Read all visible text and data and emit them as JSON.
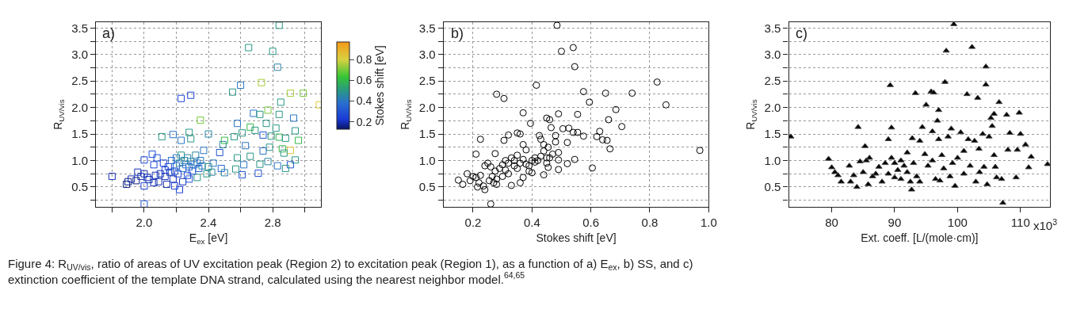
{
  "chart_data": [
    {
      "type": "scatter",
      "xlabel": "E$_{ex}$ [eV]",
      "ylabel": "R$_{UV/vis}$",
      "clabel": "Stokes shift [eV]",
      "clim": [
        0.13,
        0.97
      ],
      "cticks": [
        0.2,
        0.4,
        0.6,
        0.8
      ],
      "marker": "square",
      "grid": true,
      "xlim": [
        1.7,
        3.1
      ],
      "xticks": [
        {
          "value": 1.8,
          "label": null
        },
        {
          "value": 2.0,
          "label": "2.0"
        },
        {
          "value": 2.2,
          "label": null
        },
        2.4,
        {
          "value": 2.6,
          "label": null
        },
        2.8,
        {
          "value": 3.0,
          "label": null
        }
      ],
      "ylim": [
        0.12,
        3.61
      ],
      "yticks": [
        {
          "value": 0.25,
          "label": null
        },
        0.5,
        {
          "value": 0.75,
          "label": null
        },
        {
          "value": 1.0,
          "label": "1.0"
        },
        {
          "value": 1.25,
          "label": null
        },
        1.5,
        {
          "value": 1.75,
          "label": null
        },
        {
          "value": 2.0,
          "label": "2.0"
        },
        {
          "value": 2.25,
          "label": null
        },
        2.5,
        {
          "value": 2.75,
          "label": null
        },
        {
          "value": 3.0,
          "label": "3.0"
        },
        {
          "value": 3.25,
          "label": null
        },
        3.5
      ],
      "annotations": [
        "a)",
        "Figure 4: R$_{UV/vis}$, ratio of areas of UV excitation peak (Region 2) to excitation peak (Region 1), as a function of a) E$_{ex}$, b) SS, and c) extinction coefficient of the template DNA strand, calculated using the nearest neighbor model.$^{64,65}$"
      ],
      "series": [
        {
          "x": [
            2.84,
            2.65,
            2.8,
            2.83,
            2.6,
            2.73,
            2.55,
            2.91,
            2.99,
            3.09,
            2.85,
            2.23,
            2.29,
            2.35,
            2.68,
            2.72,
            2.77,
            2.84,
            2.93,
            2.58,
            2.66,
            2.76,
            2.82,
            2.94,
            2.61,
            2.56,
            2.69,
            2.74,
            2.79,
            2.84,
            2.88,
            2.96,
            2.11,
            2.18,
            2.28,
            2.4,
            2.23,
            2.29,
            2.5,
            2.49,
            2.63,
            2.78,
            2.86,
            2.91,
            2.87,
            2.74,
            2.37,
            2.47,
            2.58,
            2.66,
            2.94,
            2.77,
            2.72,
            2.83,
            2.91,
            2.88,
            2.71,
            2.61,
            2.62,
            2.57,
            2.5,
            2.48,
            2.42,
            2.39,
            2.4,
            2.43,
            2.36,
            2.33,
            1.8,
            1.89,
            1.9,
            1.92,
            1.95,
            1.96,
            1.98,
            2.0,
            2.0,
            2.0,
            2.0,
            2.02,
            2.03,
            2.05,
            2.06,
            2.07,
            2.08,
            2.09,
            2.1,
            2.12,
            2.13,
            2.14,
            2.15,
            2.16,
            2.17,
            2.18,
            2.19,
            2.2,
            2.2,
            2.21,
            2.22,
            2.22,
            2.23,
            2.24,
            2.24,
            2.25,
            2.26,
            2.27,
            2.27,
            2.28,
            2.29,
            2.3,
            2.31,
            2.32,
            2.33,
            2.34,
            2.35,
            2.28,
            2.19,
            2.13,
            2.06
          ],
          "values": [
            3.55,
            3.13,
            3.06,
            2.76,
            2.42,
            2.47,
            2.29,
            2.27,
            2.27,
            2.05,
            2.1,
            2.17,
            2.23,
            1.76,
            1.89,
            1.87,
            1.95,
            1.87,
            1.8,
            1.7,
            1.63,
            1.7,
            1.61,
            1.56,
            1.52,
            1.45,
            1.57,
            1.48,
            1.46,
            1.44,
            1.42,
            1.38,
            1.45,
            1.49,
            1.53,
            1.5,
            1.38,
            1.41,
            1.38,
            1.3,
            1.28,
            1.25,
            1.22,
            1.19,
            1.14,
            1.18,
            1.19,
            1.15,
            1.05,
            1.08,
            1.01,
            0.98,
            0.93,
            0.9,
            0.92,
            0.85,
            0.76,
            0.73,
            0.92,
            0.84,
            0.77,
            0.85,
            0.78,
            0.75,
            0.88,
            0.95,
            0.9,
            0.68,
            0.7,
            0.55,
            0.6,
            0.65,
            0.62,
            0.78,
            0.7,
            1.01,
            0.75,
            0.52,
            0.18,
            0.68,
            0.64,
            1.12,
            0.92,
            0.72,
            1.05,
            0.6,
            0.75,
            0.95,
            0.7,
            0.55,
            0.88,
            0.78,
            1.0,
            0.65,
            0.52,
            0.9,
            1.05,
            0.75,
            0.95,
            0.45,
            1.1,
            0.85,
            0.6,
            1.0,
            0.92,
            1.05,
            0.72,
            0.88,
            0.98,
            0.8,
            0.92,
            1.1,
            0.95,
            0.85,
            1.0,
            0.65,
            0.8,
            0.82,
            0.58
          ],
          "cvalues": [
            0.5,
            0.5,
            0.5,
            0.45,
            0.4,
            0.75,
            0.5,
            0.75,
            0.7,
            0.82,
            0.5,
            0.25,
            0.25,
            0.7,
            0.4,
            0.5,
            0.7,
            0.5,
            0.4,
            0.4,
            0.6,
            0.5,
            0.5,
            0.5,
            0.5,
            0.5,
            0.5,
            0.3,
            0.5,
            0.6,
            0.5,
            0.6,
            0.5,
            0.4,
            0.5,
            0.45,
            0.4,
            0.5,
            0.6,
            0.45,
            0.4,
            0.5,
            0.6,
            0.85,
            0.5,
            0.4,
            0.4,
            0.3,
            0.5,
            0.5,
            0.5,
            0.45,
            0.5,
            0.4,
            0.3,
            0.5,
            0.3,
            0.3,
            0.4,
            0.5,
            0.45,
            0.35,
            0.45,
            0.5,
            0.5,
            0.4,
            0.45,
            0.5,
            0.2,
            0.15,
            0.15,
            0.2,
            0.15,
            0.2,
            0.2,
            0.25,
            0.2,
            0.25,
            0.3,
            0.2,
            0.2,
            0.3,
            0.25,
            0.2,
            0.3,
            0.2,
            0.2,
            0.25,
            0.2,
            0.2,
            0.3,
            0.2,
            0.35,
            0.2,
            0.25,
            0.35,
            0.4,
            0.25,
            0.45,
            0.25,
            0.5,
            0.4,
            0.2,
            0.45,
            0.4,
            0.45,
            0.25,
            0.35,
            0.45,
            0.3,
            0.4,
            0.45,
            0.4,
            0.35,
            0.4,
            0.3,
            0.3,
            0.25,
            0.2
          ]
        }
      ]
    },
    {
      "type": "scatter",
      "xlabel": "Stokes shift [eV]",
      "ylabel": "R$_{UV/vis}$",
      "marker": "circle",
      "grid": true,
      "xlim": [
        0.1,
        1.0
      ],
      "xticks": [
        0.2,
        0.4,
        0.6,
        0.8,
        {
          "value": 1.0,
          "label": "1.0"
        }
      ],
      "ylim": [
        0.12,
        3.61
      ],
      "yticks": [
        {
          "value": 0.25,
          "label": null
        },
        0.5,
        {
          "value": 0.75,
          "label": null
        },
        {
          "value": 1.0,
          "label": "1.0"
        },
        {
          "value": 1.25,
          "label": null
        },
        1.5,
        {
          "value": 1.75,
          "label": null
        },
        {
          "value": 2.0,
          "label": "2.0"
        },
        {
          "value": 2.25,
          "label": null
        },
        2.5,
        {
          "value": 2.75,
          "label": null
        },
        {
          "value": 3.0,
          "label": "3.0"
        },
        {
          "value": 3.25,
          "label": null
        },
        3.5
      ],
      "annotations": [
        "b)"
      ],
      "series": [
        {
          "color": "#000000",
          "x": [
            0.485,
            0.5,
            0.54,
            0.545,
            0.415,
            0.825,
            0.28,
            0.305,
            0.575,
            0.65,
            0.74,
            0.595,
            0.855,
            0.685,
            0.37,
            0.49,
            0.555,
            0.66,
            0.45,
            0.46,
            0.395,
            0.705,
            0.465,
            0.505,
            0.525,
            0.63,
            0.54,
            0.555,
            0.35,
            0.36,
            0.32,
            0.425,
            0.48,
            0.575,
            0.62,
            0.64,
            0.655,
            0.225,
            0.305,
            0.52,
            0.665,
            0.97,
            0.37,
            0.44,
            0.455,
            0.21,
            0.275,
            0.46,
            0.49,
            0.545,
            0.49,
            0.52,
            0.605,
            0.49,
            0.455,
            0.44,
            0.4,
            0.26,
            0.15,
            0.165,
            0.18,
            0.19,
            0.2,
            0.21,
            0.215,
            0.225,
            0.235,
            0.24,
            0.24,
            0.25,
            0.255,
            0.265,
            0.27,
            0.275,
            0.28,
            0.29,
            0.3,
            0.3,
            0.31,
            0.32,
            0.32,
            0.33,
            0.33,
            0.34,
            0.34,
            0.35,
            0.35,
            0.36,
            0.36,
            0.37,
            0.37,
            0.38,
            0.38,
            0.39,
            0.39,
            0.4,
            0.41,
            0.41,
            0.42,
            0.43,
            0.43,
            0.44,
            0.45,
            0.45,
            0.47,
            0.48,
            0.31,
            0.28,
            0.26,
            0.22
          ],
          "values": [
            3.55,
            3.06,
            3.13,
            2.77,
            2.42,
            2.48,
            2.25,
            2.17,
            2.3,
            2.27,
            2.27,
            2.1,
            2.05,
            1.96,
            1.9,
            1.88,
            1.87,
            1.77,
            1.8,
            1.77,
            1.7,
            1.64,
            1.62,
            1.6,
            1.61,
            1.55,
            1.53,
            1.53,
            1.52,
            1.5,
            1.48,
            1.47,
            1.47,
            1.46,
            1.45,
            1.39,
            1.38,
            1.4,
            1.38,
            1.34,
            1.22,
            1.19,
            1.3,
            1.3,
            1.25,
            1.12,
            1.13,
            1.05,
            1.15,
            1.02,
            1.01,
            0.94,
            0.86,
            0.83,
            0.87,
            0.73,
            0.77,
            0.18,
            0.63,
            0.55,
            0.75,
            0.62,
            0.7,
            0.68,
            0.5,
            0.72,
            0.52,
            0.45,
            0.9,
            0.95,
            0.62,
            0.7,
            0.58,
            0.8,
            0.55,
            0.85,
            0.92,
            0.7,
            1.0,
            0.95,
            0.75,
            0.53,
            1.05,
            0.9,
            1.0,
            0.85,
            1.1,
            0.95,
            0.58,
            1.02,
            0.68,
            0.93,
            1.2,
            0.9,
            0.8,
            1.0,
            0.97,
            1.05,
            1.0,
            1.08,
            1.4,
            1.18,
            1.05,
            0.95,
            1.12,
            1.35,
            0.82,
            0.65,
            0.88,
            0.58
          ]
        }
      ]
    },
    {
      "type": "scatter",
      "xlabel": "Ext. coeff. [L/(mole·cm)]",
      "ylabel": "R$_{UV/vis}$",
      "marker": "triangle",
      "grid": "y",
      "xlim": [
        73.2,
        114.7
      ],
      "xticks": [
        80,
        90,
        100,
        110
      ],
      "ylim": [
        0.12,
        3.61
      ],
      "yticks": [
        {
          "value": 0.25,
          "label": null
        },
        0.5,
        {
          "value": 0.75,
          "label": null
        },
        {
          "value": 1.0,
          "label": "1.0"
        },
        {
          "value": 1.25,
          "label": null
        },
        1.5,
        {
          "value": 1.75,
          "label": null
        },
        {
          "value": 2.0,
          "label": "2.0"
        },
        {
          "value": 2.25,
          "label": null
        },
        2.5,
        {
          "value": 2.75,
          "label": null
        },
        {
          "value": 3.0,
          "label": "3.0"
        },
        {
          "value": 3.25,
          "label": null
        },
        3.5
      ],
      "annotations": [
        "c)",
        "x10$^{3}$"
      ],
      "series": [
        {
          "color": "#000000",
          "x": [
            73.5,
            79.5,
            80,
            80.5,
            81,
            81.5,
            82.8,
            83,
            83.5,
            84,
            84.2,
            84.5,
            85,
            85.3,
            85.5,
            85.8,
            86,
            86.5,
            87,
            87.5,
            88,
            88.5,
            89,
            89,
            89.3,
            89.5,
            89.5,
            90,
            90,
            90.5,
            91,
            91,
            91.5,
            92,
            92,
            92.5,
            92.7,
            92.8,
            93,
            93.3,
            93.5,
            94,
            94,
            94.4,
            94.8,
            95,
            95.3,
            95.8,
            96,
            96,
            96.2,
            96.5,
            96.8,
            97,
            97,
            97.2,
            97.5,
            97.8,
            98,
            98.2,
            98.5,
            98.8,
            99,
            99.2,
            99.4,
            99.6,
            100,
            100.5,
            101,
            101,
            101.5,
            101.7,
            102,
            102.3,
            102.7,
            102.9,
            103.2,
            103.4,
            103.5,
            104,
            104.2,
            104.5,
            104.5,
            104.7,
            105,
            105.3,
            105.5,
            105.8,
            105.8,
            106,
            106.2,
            106.6,
            107,
            107.2,
            107.8,
            108,
            108.3,
            109.3,
            109.5,
            109.8,
            110,
            110.8,
            111.3,
            111.7,
            114.3
          ],
          "values": [
            1.45,
            1.03,
            0.87,
            0.78,
            0.72,
            0.6,
            0.9,
            0.6,
            0.72,
            0.5,
            1.63,
            0.98,
            0.78,
            1.27,
            1.0,
            0.55,
            1.05,
            0.7,
            0.75,
            0.88,
            0.6,
            0.95,
            1.4,
            0.75,
            2.42,
            1.62,
            1.05,
            0.68,
            0.95,
            0.82,
            1.0,
            0.65,
            0.9,
            0.78,
            1.15,
            0.6,
            0.45,
            1.42,
            0.95,
            2.27,
            0.7,
            1.37,
            0.6,
            1.63,
            1.12,
            2.05,
            0.9,
            2.3,
            1.55,
            1.0,
            2.28,
            0.65,
            1.75,
            1.95,
            1.4,
            0.62,
            1.1,
            0.85,
            2.48,
            3.07,
            1.45,
            0.7,
            1.6,
            0.95,
            3.57,
            0.52,
            1.05,
            1.53,
            0.75,
            1.18,
            2.25,
            1.4,
            0.9,
            3.14,
            1.37,
            0.6,
            2.18,
            1.22,
            0.78,
            1.5,
            0.88,
            2.77,
            2.43,
            0.55,
            1.45,
            1.8,
            1.65,
            1.88,
            1.1,
            0.88,
            0.68,
            2.1,
            0.65,
            0.2,
            1.86,
            1.2,
            1.52,
            0.68,
            1.2,
            1.9,
            1.5,
            1.3,
            0.87,
            1.07,
            0.93
          ]
        }
      ]
    }
  ]
}
